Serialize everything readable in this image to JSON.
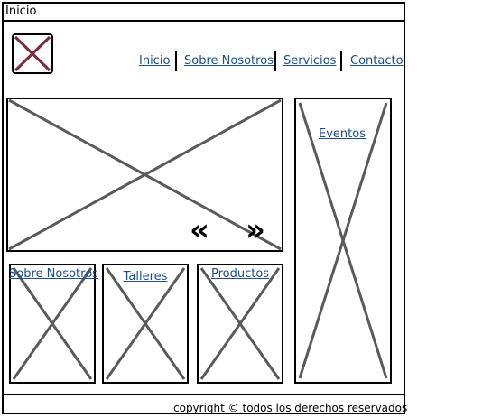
{
  "window": {
    "title": "Inicio"
  },
  "header": {
    "logo": "image-placeholder-icon",
    "nav": [
      {
        "label": "Inicio"
      },
      {
        "label": "Sobre Nosotros"
      },
      {
        "label": "Servicios"
      },
      {
        "label": "Contacto"
      }
    ]
  },
  "carousel": {
    "prev_icon": "double-chevron-left-icon",
    "next_icon": "double-chevron-right-icon",
    "prev_glyph": "«",
    "next_glyph": "»"
  },
  "sidebar": {
    "label": "Eventos"
  },
  "cards": [
    {
      "label": "Sobre Nosotros"
    },
    {
      "label": "Talleres"
    },
    {
      "label": "Productos"
    }
  ],
  "footer": {
    "text": "copyright © todos los derechos reservados"
  },
  "colors": {
    "link": "#1a4f8a",
    "logo_x": "#7a2a3a",
    "placeholder_line": "#5a5a5a"
  }
}
